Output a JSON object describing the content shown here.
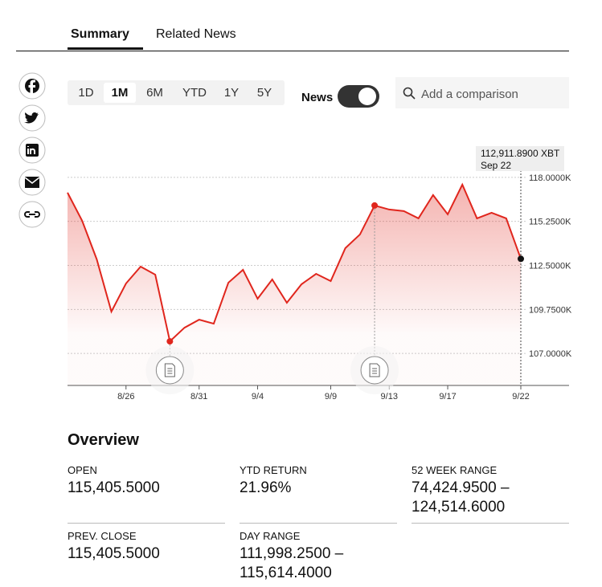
{
  "tabs": [
    "Summary",
    "Related News"
  ],
  "ranges": [
    "1D",
    "1M",
    "6M",
    "YTD",
    "1Y",
    "5Y"
  ],
  "news_toggle": "News",
  "search_placeholder": "Add a comparison",
  "chart": {
    "type": "line",
    "color": "#e0261d",
    "categories": [
      null,
      null,
      null,
      null,
      "8/26",
      null,
      null,
      null,
      null,
      "8/31",
      null,
      null,
      null,
      "9/4",
      null,
      null,
      null,
      null,
      "9/9",
      null,
      null,
      null,
      "9/13",
      null,
      null,
      null,
      "9/17",
      null,
      null,
      null,
      null,
      "9/22"
    ],
    "values": [
      117046,
      115288,
      112877,
      109612,
      111370,
      112425,
      111923,
      107754,
      108608,
      109110,
      108859,
      111420,
      112224,
      110416,
      111621,
      110165,
      111320,
      111973,
      111520,
      113580,
      114434,
      116242,
      115991,
      115891,
      115439,
      116895,
      115690,
      117548,
      115439,
      115790,
      115439,
      112911.89
    ],
    "ylim": [
      105000,
      120000
    ],
    "yticks": [
      {
        "value": 107000,
        "label": "107.0000K"
      },
      {
        "value": 109750,
        "label": "109.7500K"
      },
      {
        "value": 112500,
        "label": "112.5000K"
      },
      {
        "value": 115250,
        "label": "115.2500K"
      },
      {
        "value": 118000,
        "label": "118.0000K"
      }
    ],
    "grid": true,
    "tooltip": {
      "value": "112,911.8900 XBT",
      "date": "Sep 22"
    }
  },
  "overview": {
    "title": "Overview",
    "items": [
      {
        "label": "OPEN",
        "value": "115,405.5000"
      },
      {
        "label": "YTD RETURN",
        "value": "21.96%"
      },
      {
        "label": "52 WEEK RANGE",
        "value": "74,424.9500 – 124,514.6000"
      },
      {
        "label": "PREV. CLOSE",
        "value": "115,405.5000"
      },
      {
        "label": "DAY RANGE",
        "value": "111,998.2500 – 115,614.4000"
      }
    ]
  }
}
